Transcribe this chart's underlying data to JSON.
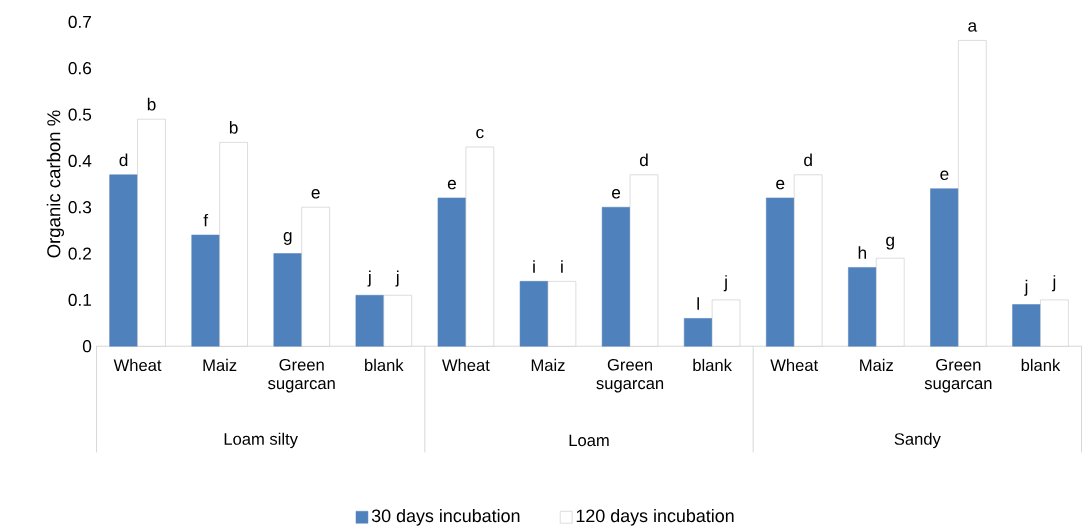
{
  "chart_data": {
    "type": "bar",
    "ylabel": "Organic carbon %",
    "categories": [
      "Wheat",
      "Maiz",
      "Green sugarcan",
      "blank",
      "Wheat",
      "Maiz",
      "Green sugarcan",
      "blank",
      "Wheat",
      "Maiz",
      "Green sugarcan",
      "blank"
    ],
    "annotations": [
      "Loam silty",
      "Loam",
      "Sandy"
    ],
    "series": [
      {
        "name": "30 days incubation",
        "color": "#4f81bd",
        "values": [
          0.37,
          0.24,
          0.2,
          0.11,
          0.32,
          0.14,
          0.3,
          0.06,
          0.32,
          0.17,
          0.34,
          0.09
        ],
        "value_labels": [
          "d",
          "f",
          "g",
          "j",
          "e",
          "i",
          "e",
          "l",
          "e",
          "h",
          "e",
          "j"
        ]
      },
      {
        "name": "120 days incubation",
        "color": "#ffffff",
        "values": [
          0.49,
          0.44,
          0.3,
          0.11,
          0.43,
          0.14,
          0.37,
          0.1,
          0.37,
          0.19,
          0.66,
          0.1
        ],
        "value_labels": [
          "b",
          "b",
          "e",
          "j",
          "c",
          "i",
          "d",
          "j",
          "d",
          "g",
          "a",
          "j"
        ]
      }
    ],
    "ylim": [
      0,
      0.7
    ],
    "yticks": [
      0,
      0.1,
      0.2,
      0.3,
      0.4,
      0.5,
      0.6,
      0.7
    ],
    "grid": false,
    "legend": "bottom"
  }
}
